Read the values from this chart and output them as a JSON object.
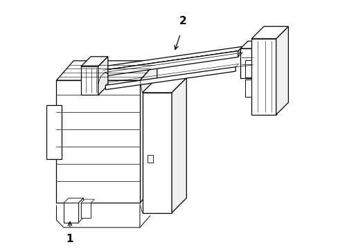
{
  "background_color": "#ffffff",
  "line_color": "#000000",
  "line_width": 0.9,
  "label1": "1",
  "label2": "2",
  "figsize": [
    4.89,
    3.6
  ],
  "dpi": 100
}
